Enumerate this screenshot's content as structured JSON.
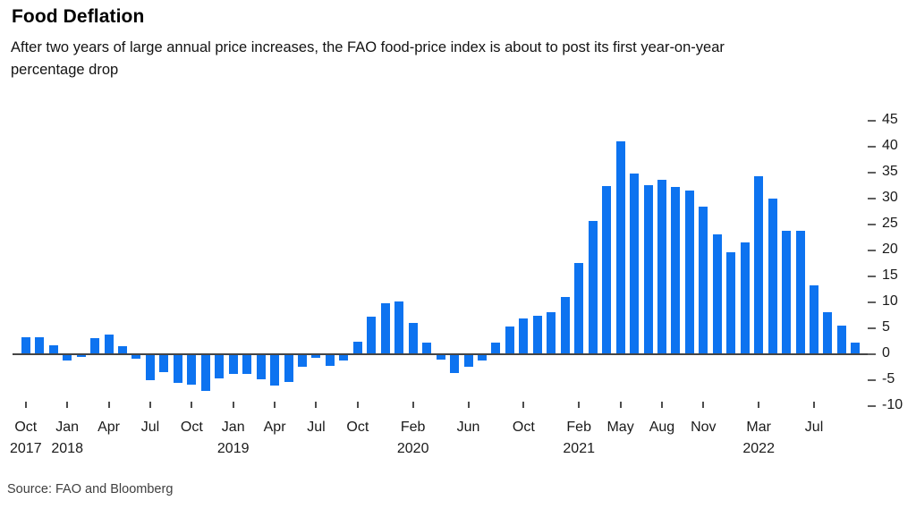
{
  "header": {
    "title": "Food Deflation",
    "subtitle_line1": "After two years of large annual price increases, the FAO food-price index is about to post its first year-on-year",
    "subtitle_line2": "percentage drop"
  },
  "footer": {
    "source": "Source: FAO and Bloomberg"
  },
  "colors": {
    "bar_blue": "#0d73f0",
    "axis_line": "#454545",
    "tick_gray": "#5f5f5f",
    "text_dark": "#1a1a1a"
  },
  "chart_data": {
    "type": "bar",
    "title": "Food Deflation",
    "description": "FAO food-price index, year-on-year percentage change, monthly from Oct 2017 to Oct 2022",
    "unit": "%",
    "ylim": [
      -10,
      45
    ],
    "grid": false,
    "legend": "none",
    "yticks": [
      45,
      40,
      35,
      30,
      25,
      20,
      15,
      10,
      5,
      0,
      -5,
      -10
    ],
    "x": [
      "2017-10",
      "2017-11",
      "2017-12",
      "2018-01",
      "2018-02",
      "2018-03",
      "2018-04",
      "2018-05",
      "2018-06",
      "2018-07",
      "2018-08",
      "2018-09",
      "2018-10",
      "2018-11",
      "2018-12",
      "2019-01",
      "2019-02",
      "2019-03",
      "2019-04",
      "2019-05",
      "2019-06",
      "2019-07",
      "2019-08",
      "2019-09",
      "2019-10",
      "2019-11",
      "2019-12",
      "2020-01",
      "2020-02",
      "2020-03",
      "2020-04",
      "2020-05",
      "2020-06",
      "2020-07",
      "2020-08",
      "2020-09",
      "2020-10",
      "2020-11",
      "2020-12",
      "2021-01",
      "2021-02",
      "2021-03",
      "2021-04",
      "2021-05",
      "2021-06",
      "2021-07",
      "2021-08",
      "2021-09",
      "2021-10",
      "2021-11",
      "2021-12",
      "2022-01",
      "2022-02",
      "2022-03",
      "2022-04",
      "2022-05",
      "2022-06",
      "2022-07",
      "2022-08",
      "2022-09",
      "2022-10"
    ],
    "values": [
      3.1,
      3.1,
      1.6,
      -1.0,
      -0.3,
      3.0,
      3.7,
      1.4,
      -0.7,
      -4.8,
      -3.3,
      -5.4,
      -5.7,
      -6.9,
      -4.4,
      -3.6,
      -3.7,
      -4.6,
      -5.9,
      -5.2,
      -2.2,
      -0.5,
      -2.0,
      -1.0,
      2.2,
      7.0,
      9.7,
      10.0,
      5.8,
      2.1,
      -0.9,
      -3.4,
      -2.2,
      -1.0,
      2.0,
      5.1,
      6.7,
      7.2,
      7.9,
      10.9,
      17.5,
      25.5,
      32.2,
      40.9,
      34.6,
      32.5,
      33.5,
      32.0,
      31.4,
      28.2,
      23.0,
      19.5,
      21.3,
      34.1,
      29.9,
      23.6,
      23.6,
      13.1,
      7.9,
      5.4,
      2.1
    ],
    "xticks": [
      {
        "label": "Oct",
        "year": "2017",
        "month_index": 0
      },
      {
        "label": "Jan",
        "year": "2018",
        "month_index": 3
      },
      {
        "label": "Apr",
        "year": "",
        "month_index": 6
      },
      {
        "label": "Jul",
        "year": "",
        "month_index": 9
      },
      {
        "label": "Oct",
        "year": "",
        "month_index": 12
      },
      {
        "label": "Jan",
        "year": "2019",
        "month_index": 15
      },
      {
        "label": "Apr",
        "year": "",
        "month_index": 18
      },
      {
        "label": "Jul",
        "year": "",
        "month_index": 21
      },
      {
        "label": "Oct",
        "year": "",
        "month_index": 24
      },
      {
        "label": "Feb",
        "year": "2020",
        "month_index": 28
      },
      {
        "label": "Jun",
        "year": "",
        "month_index": 32
      },
      {
        "label": "Oct",
        "year": "",
        "month_index": 36
      },
      {
        "label": "Feb",
        "year": "2021",
        "month_index": 40
      },
      {
        "label": "May",
        "year": "",
        "month_index": 43
      },
      {
        "label": "Aug",
        "year": "",
        "month_index": 46
      },
      {
        "label": "Nov",
        "year": "",
        "month_index": 49
      },
      {
        "label": "Mar",
        "year": "2022",
        "month_index": 53
      },
      {
        "label": "Jul",
        "year": "",
        "month_index": 57
      }
    ]
  }
}
